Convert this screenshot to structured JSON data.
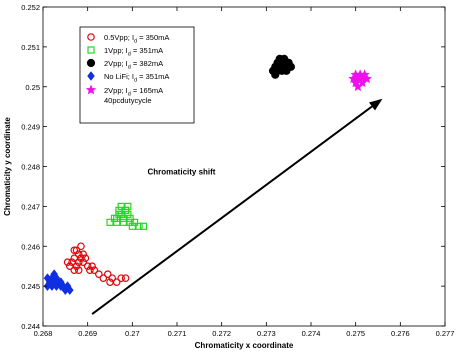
{
  "chart_data": {
    "type": "scatter",
    "title": "",
    "xlabel": "Chromaticity x coordinate",
    "ylabel": "Chromaticity y coordinate",
    "xlim": [
      0.268,
      0.277
    ],
    "ylim": [
      0.244,
      0.252
    ],
    "xticks": [
      0.268,
      0.269,
      0.27,
      0.271,
      0.272,
      0.273,
      0.274,
      0.275,
      0.276,
      0.277
    ],
    "yticks": [
      0.244,
      0.245,
      0.246,
      0.247,
      0.248,
      0.249,
      0.25,
      0.251,
      0.252
    ],
    "xtick_labels": [
      "0.268",
      "0.269",
      "0.27",
      "0.271",
      "0.272",
      "0.273",
      "0.274",
      "0.275",
      "0.276",
      "0.277"
    ],
    "ytick_labels": [
      "0.244",
      "0.245",
      "0.246",
      "0.247",
      "0.248",
      "0.249",
      "0.25",
      "0.251",
      "0.252"
    ],
    "grid": false,
    "legend_position": "top-left",
    "annotation": {
      "text": "Chromaticity shift",
      "text_at": [
        0.2711,
        0.2478
      ],
      "arrow_from": [
        0.2691,
        0.2443
      ],
      "arrow_to": [
        0.2756,
        0.2497
      ]
    },
    "series": [
      {
        "name": "0.5Vpp; I",
        "subscript": "d",
        "name_suffix": " = 350mA",
        "marker": "circle-open",
        "color": "#e8000b",
        "points": [
          [
            0.26875,
            0.2459
          ],
          [
            0.2688,
            0.2458
          ],
          [
            0.26885,
            0.2457
          ],
          [
            0.2687,
            0.2457
          ],
          [
            0.26865,
            0.2456
          ],
          [
            0.2688,
            0.2456
          ],
          [
            0.2689,
            0.2456
          ],
          [
            0.26875,
            0.2455
          ],
          [
            0.2686,
            0.2455
          ],
          [
            0.2687,
            0.2454
          ],
          [
            0.2688,
            0.2454
          ],
          [
            0.26855,
            0.2456
          ],
          [
            0.2689,
            0.2458
          ],
          [
            0.269,
            0.2455
          ],
          [
            0.26905,
            0.2454
          ],
          [
            0.26915,
            0.2454
          ],
          [
            0.26925,
            0.2453
          ],
          [
            0.26935,
            0.2452
          ],
          [
            0.26945,
            0.2453
          ],
          [
            0.26955,
            0.2452
          ],
          [
            0.26965,
            0.2451
          ],
          [
            0.26975,
            0.2452
          ],
          [
            0.26985,
            0.2452
          ],
          [
            0.2695,
            0.2451
          ],
          [
            0.26885,
            0.246
          ],
          [
            0.26895,
            0.2457
          ],
          [
            0.2687,
            0.2459
          ],
          [
            0.2691,
            0.2455
          ]
        ]
      },
      {
        "name": "1Vpp; I",
        "subscript": "d",
        "name_suffix": " = 351mA",
        "marker": "square-open",
        "color": "#1ddc1d",
        "points": [
          [
            0.26975,
            0.247
          ],
          [
            0.2699,
            0.247
          ],
          [
            0.2697,
            0.2469
          ],
          [
            0.26985,
            0.2469
          ],
          [
            0.26975,
            0.2468
          ],
          [
            0.2699,
            0.2468
          ],
          [
            0.26965,
            0.2467
          ],
          [
            0.2698,
            0.2467
          ],
          [
            0.26995,
            0.2467
          ],
          [
            0.2696,
            0.2467
          ],
          [
            0.2695,
            0.2466
          ],
          [
            0.26965,
            0.2466
          ],
          [
            0.2698,
            0.2466
          ],
          [
            0.26995,
            0.2466
          ],
          [
            0.27005,
            0.2466
          ],
          [
            0.27,
            0.2465
          ],
          [
            0.27015,
            0.2465
          ],
          [
            0.27025,
            0.2465
          ],
          [
            0.26985,
            0.2469
          ],
          [
            0.2697,
            0.2468
          ]
        ]
      },
      {
        "name": "2Vpp; I",
        "subscript": "d",
        "name_suffix": " = 382mA",
        "marker": "circle-filled",
        "color": "#000000",
        "points": [
          [
            0.27315,
            0.2504
          ],
          [
            0.2732,
            0.2505
          ],
          [
            0.27325,
            0.2506
          ],
          [
            0.2733,
            0.2506
          ],
          [
            0.27335,
            0.2505
          ],
          [
            0.2734,
            0.2506
          ],
          [
            0.27345,
            0.2505
          ],
          [
            0.2735,
            0.2506
          ],
          [
            0.27325,
            0.2504
          ],
          [
            0.27335,
            0.2504
          ],
          [
            0.27345,
            0.2504
          ],
          [
            0.2733,
            0.2507
          ],
          [
            0.2734,
            0.2507
          ],
          [
            0.27355,
            0.2505
          ],
          [
            0.2732,
            0.2503
          ]
        ]
      },
      {
        "name": "No LiFi; I",
        "subscript": "d",
        "name_suffix": " = 351mA",
        "marker": "diamond-filled",
        "color": "#0f2fe0",
        "points": [
          [
            0.2681,
            0.2452
          ],
          [
            0.26815,
            0.2451
          ],
          [
            0.2682,
            0.2452
          ],
          [
            0.26825,
            0.2451
          ],
          [
            0.2683,
            0.2452
          ],
          [
            0.2682,
            0.245
          ],
          [
            0.2683,
            0.245
          ],
          [
            0.26835,
            0.2451
          ],
          [
            0.2684,
            0.245
          ],
          [
            0.26845,
            0.245
          ],
          [
            0.2685,
            0.2449
          ],
          [
            0.26855,
            0.245
          ],
          [
            0.2686,
            0.2449
          ],
          [
            0.2681,
            0.245
          ],
          [
            0.26825,
            0.2453
          ],
          [
            0.2684,
            0.2451
          ]
        ]
      },
      {
        "name": "2Vpp; I",
        "subscript": "d",
        "name_suffix": " = 165mA",
        "name_line2": "40pcdutycycle",
        "marker": "star-filled",
        "color": "#ee11ee",
        "points": [
          [
            0.27495,
            0.2502
          ],
          [
            0.275,
            0.2501
          ],
          [
            0.27505,
            0.2502
          ],
          [
            0.2751,
            0.2503
          ],
          [
            0.27515,
            0.2502
          ],
          [
            0.2752,
            0.2503
          ],
          [
            0.27525,
            0.2502
          ],
          [
            0.27505,
            0.25
          ],
          [
            0.27515,
            0.2501
          ],
          [
            0.2751,
            0.2502
          ],
          [
            0.275,
            0.2503
          ]
        ]
      }
    ]
  }
}
